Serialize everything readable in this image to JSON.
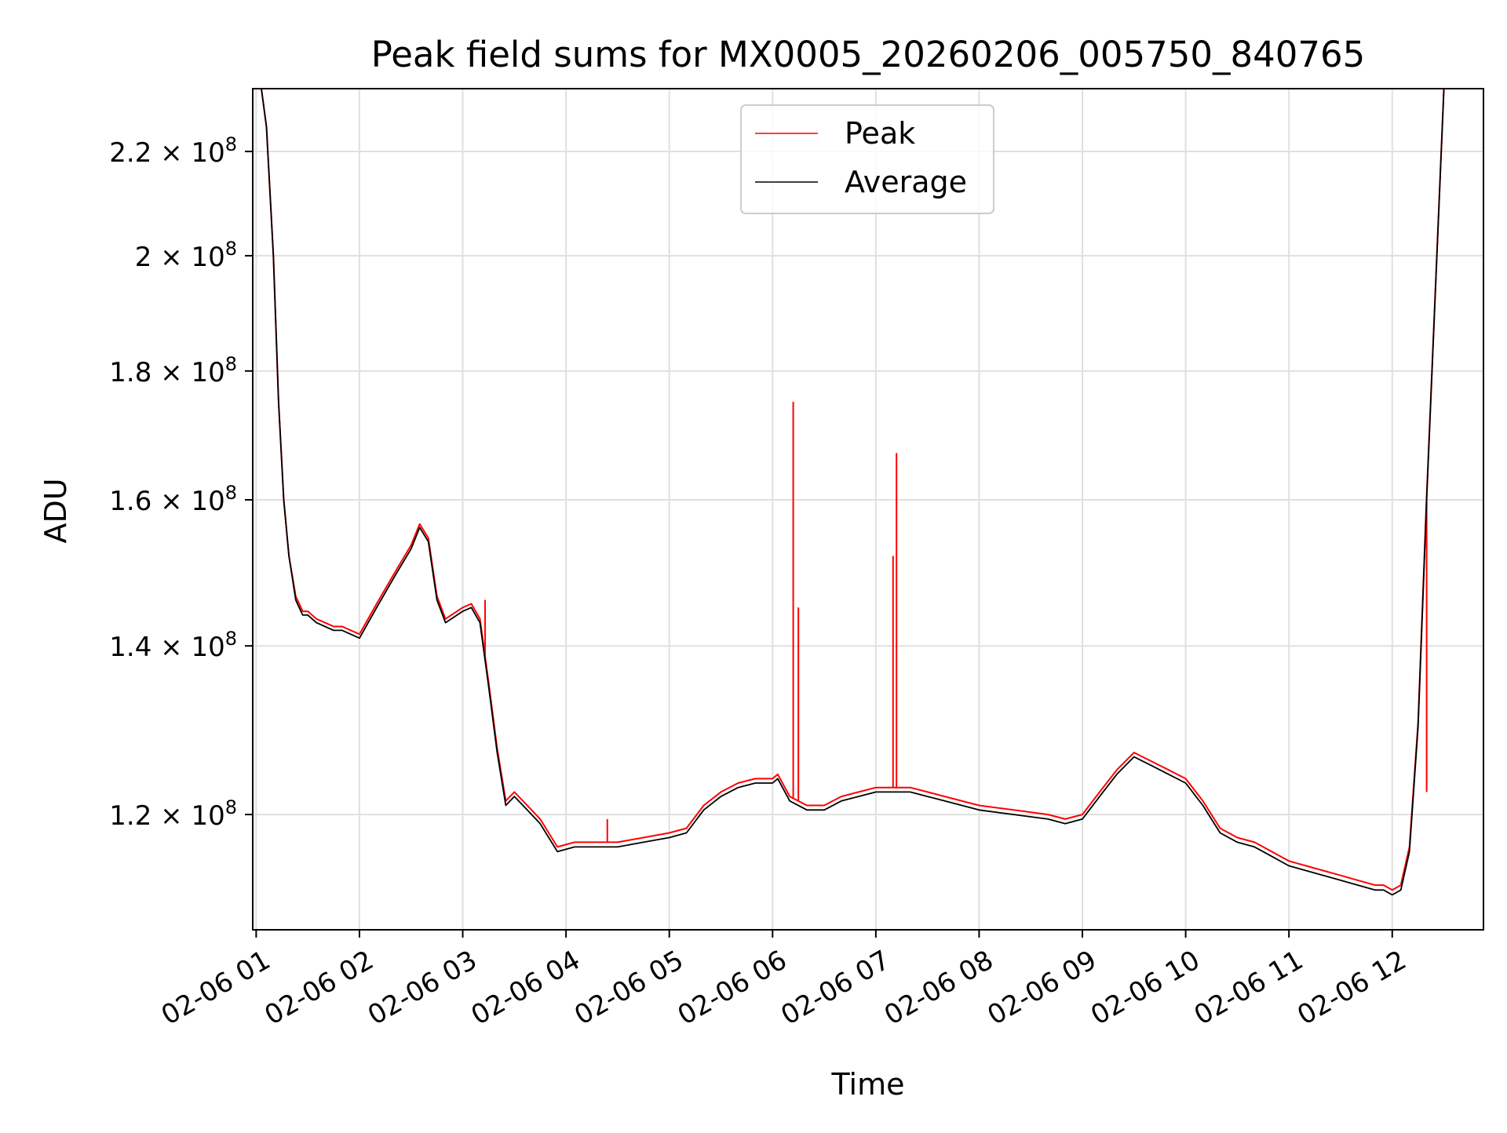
{
  "chart_data": {
    "type": "line",
    "title": "Peak field sums for MX0005_20260206_005750_840765",
    "xlabel": "Time",
    "ylabel": "ADU",
    "x_axis_type": "datetime",
    "xlim": [
      "2026-02-06 00:58",
      "2026-02-06 12:53"
    ],
    "ylim": [
      108000000,
      233000000
    ],
    "grid": true,
    "legend_position": "upper center",
    "x_ticks": [
      {
        "value": "2026-02-06 01:00",
        "label": "02-06 01"
      },
      {
        "value": "2026-02-06 02:00",
        "label": "02-06 02"
      },
      {
        "value": "2026-02-06 03:00",
        "label": "02-06 03"
      },
      {
        "value": "2026-02-06 04:00",
        "label": "02-06 04"
      },
      {
        "value": "2026-02-06 05:00",
        "label": "02-06 05"
      },
      {
        "value": "2026-02-06 06:00",
        "label": "02-06 06"
      },
      {
        "value": "2026-02-06 07:00",
        "label": "02-06 07"
      },
      {
        "value": "2026-02-06 08:00",
        "label": "02-06 08"
      },
      {
        "value": "2026-02-06 09:00",
        "label": "02-06 09"
      },
      {
        "value": "2026-02-06 10:00",
        "label": "02-06 10"
      },
      {
        "value": "2026-02-06 11:00",
        "label": "02-06 11"
      },
      {
        "value": "2026-02-06 12:00",
        "label": "02-06 12"
      }
    ],
    "y_ticks": [
      {
        "value": 120000000,
        "mantissa": "1.2",
        "base": "10",
        "exponent": "8"
      },
      {
        "value": 140000000,
        "mantissa": "1.4",
        "base": "10",
        "exponent": "8"
      },
      {
        "value": 160000000,
        "mantissa": "1.6",
        "base": "10",
        "exponent": "8"
      },
      {
        "value": 180000000,
        "mantissa": "1.8",
        "base": "10",
        "exponent": "8"
      },
      {
        "value": 200000000,
        "mantissa": "2",
        "base": "10",
        "exponent": "8"
      },
      {
        "value": 220000000,
        "mantissa": "2.2",
        "base": "10",
        "exponent": "8"
      }
    ],
    "series": [
      {
        "name": "Average",
        "color": "#000000",
        "x": [
          "2026-02-06 00:58",
          "2026-02-06 01:03",
          "2026-02-06 01:06",
          "2026-02-06 01:10",
          "2026-02-06 01:13",
          "2026-02-06 01:16",
          "2026-02-06 01:19",
          "2026-02-06 01:23",
          "2026-02-06 01:27",
          "2026-02-06 01:30",
          "2026-02-06 01:35",
          "2026-02-06 01:40",
          "2026-02-06 01:45",
          "2026-02-06 01:50",
          "2026-02-06 02:00",
          "2026-02-06 02:10",
          "2026-02-06 02:20",
          "2026-02-06 02:30",
          "2026-02-06 02:35",
          "2026-02-06 02:40",
          "2026-02-06 02:45",
          "2026-02-06 02:50",
          "2026-02-06 03:00",
          "2026-02-06 03:05",
          "2026-02-06 03:10",
          "2026-02-06 03:15",
          "2026-02-06 03:20",
          "2026-02-06 03:25",
          "2026-02-06 03:30",
          "2026-02-06 03:35",
          "2026-02-06 03:45",
          "2026-02-06 03:55",
          "2026-02-06 04:05",
          "2026-02-06 04:10",
          "2026-02-06 04:15",
          "2026-02-06 04:30",
          "2026-02-06 04:45",
          "2026-02-06 05:00",
          "2026-02-06 05:10",
          "2026-02-06 05:20",
          "2026-02-06 05:30",
          "2026-02-06 05:40",
          "2026-02-06 05:50",
          "2026-02-06 06:00",
          "2026-02-06 06:03",
          "2026-02-06 06:10",
          "2026-02-06 06:20",
          "2026-02-06 06:30",
          "2026-02-06 06:40",
          "2026-02-06 06:50",
          "2026-02-06 07:00",
          "2026-02-06 07:10",
          "2026-02-06 07:20",
          "2026-02-06 07:30",
          "2026-02-06 07:40",
          "2026-02-06 08:00",
          "2026-02-06 08:20",
          "2026-02-06 08:40",
          "2026-02-06 08:50",
          "2026-02-06 09:00",
          "2026-02-06 09:10",
          "2026-02-06 09:20",
          "2026-02-06 09:30",
          "2026-02-06 09:40",
          "2026-02-06 09:50",
          "2026-02-06 10:00",
          "2026-02-06 10:10",
          "2026-02-06 10:20",
          "2026-02-06 10:30",
          "2026-02-06 10:40",
          "2026-02-06 10:50",
          "2026-02-06 11:00",
          "2026-02-06 11:10",
          "2026-02-06 11:20",
          "2026-02-06 11:30",
          "2026-02-06 11:40",
          "2026-02-06 11:50",
          "2026-02-06 11:55",
          "2026-02-06 12:00",
          "2026-02-06 12:05",
          "2026-02-06 12:10",
          "2026-02-06 12:15",
          "2026-02-06 12:20",
          "2026-02-06 12:30",
          "2026-02-06 12:45"
        ],
        "y": [
          233000000,
          233000000,
          225000000,
          200000000,
          175000000,
          160000000,
          152000000,
          146000000,
          144000000,
          144000000,
          143000000,
          142500000,
          142000000,
          142000000,
          141000000,
          145000000,
          149000000,
          153000000,
          156000000,
          154000000,
          146000000,
          143000000,
          144500000,
          145000000,
          143000000,
          135000000,
          127000000,
          121000000,
          122000000,
          121000000,
          119000000,
          116000000,
          116500000,
          116500000,
          116500000,
          116500000,
          117000000,
          117500000,
          118000000,
          120500000,
          122000000,
          123000000,
          123500000,
          123500000,
          124000000,
          121500000,
          120500000,
          120500000,
          121500000,
          122000000,
          122500000,
          122500000,
          122500000,
          122000000,
          121500000,
          120500000,
          120000000,
          119500000,
          119000000,
          119500000,
          122000000,
          124500000,
          126500000,
          125500000,
          124500000,
          123500000,
          121000000,
          118000000,
          117000000,
          116500000,
          115500000,
          114500000,
          114000000,
          113500000,
          113000000,
          112500000,
          112000000,
          112000000,
          111500000,
          112000000,
          116000000,
          130000000,
          160000000,
          233000000,
          233000000
        ]
      },
      {
        "name": "Peak",
        "color": "#ff0000",
        "x": [
          "2026-02-06 00:58",
          "2026-02-06 01:03",
          "2026-02-06 01:06",
          "2026-02-06 01:10",
          "2026-02-06 01:13",
          "2026-02-06 01:16",
          "2026-02-06 01:19",
          "2026-02-06 01:23",
          "2026-02-06 01:27",
          "2026-02-06 01:30",
          "2026-02-06 01:35",
          "2026-02-06 01:40",
          "2026-02-06 01:45",
          "2026-02-06 01:50",
          "2026-02-06 02:00",
          "2026-02-06 02:10",
          "2026-02-06 02:20",
          "2026-02-06 02:30",
          "2026-02-06 02:35",
          "2026-02-06 02:40",
          "2026-02-06 02:45",
          "2026-02-06 02:50",
          "2026-02-06 03:00",
          "2026-02-06 03:05",
          "2026-02-06 03:10",
          "2026-02-06 03:15",
          "2026-02-06 03:20",
          "2026-02-06 03:25",
          "2026-02-06 03:30",
          "2026-02-06 03:35",
          "2026-02-06 03:45",
          "2026-02-06 03:55",
          "2026-02-06 04:05",
          "2026-02-06 04:10",
          "2026-02-06 04:15",
          "2026-02-06 04:30",
          "2026-02-06 04:45",
          "2026-02-06 05:00",
          "2026-02-06 05:10",
          "2026-02-06 05:20",
          "2026-02-06 05:30",
          "2026-02-06 05:40",
          "2026-02-06 05:50",
          "2026-02-06 06:00",
          "2026-02-06 06:03",
          "2026-02-06 06:10",
          "2026-02-06 06:20",
          "2026-02-06 06:30",
          "2026-02-06 06:40",
          "2026-02-06 06:50",
          "2026-02-06 07:00",
          "2026-02-06 07:10",
          "2026-02-06 07:20",
          "2026-02-06 07:30",
          "2026-02-06 07:40",
          "2026-02-06 08:00",
          "2026-02-06 08:20",
          "2026-02-06 08:40",
          "2026-02-06 08:50",
          "2026-02-06 09:00",
          "2026-02-06 09:10",
          "2026-02-06 09:20",
          "2026-02-06 09:30",
          "2026-02-06 09:40",
          "2026-02-06 09:50",
          "2026-02-06 10:00",
          "2026-02-06 10:10",
          "2026-02-06 10:20",
          "2026-02-06 10:30",
          "2026-02-06 10:40",
          "2026-02-06 10:50",
          "2026-02-06 11:00",
          "2026-02-06 11:10",
          "2026-02-06 11:20",
          "2026-02-06 11:30",
          "2026-02-06 11:40",
          "2026-02-06 11:50",
          "2026-02-06 11:55",
          "2026-02-06 12:00",
          "2026-02-06 12:05",
          "2026-02-06 12:10",
          "2026-02-06 12:15",
          "2026-02-06 12:20",
          "2026-02-06 12:30",
          "2026-02-06 12:45"
        ],
        "y": [
          233000000,
          233000000,
          225000000,
          200000000,
          175000000,
          160000000,
          152000000,
          146500000,
          144500000,
          144500000,
          143500000,
          143000000,
          142500000,
          142500000,
          141500000,
          145500000,
          149500000,
          153500000,
          156500000,
          154500000,
          146500000,
          143500000,
          145000000,
          145500000,
          143500000,
          135500000,
          127500000,
          121500000,
          122500000,
          121500000,
          119500000,
          116500000,
          117000000,
          117000000,
          117000000,
          117000000,
          117500000,
          118000000,
          118500000,
          121000000,
          122500000,
          123500000,
          124000000,
          124000000,
          124500000,
          122000000,
          121000000,
          121000000,
          122000000,
          122500000,
          123000000,
          123000000,
          123000000,
          122500000,
          122000000,
          121000000,
          120500000,
          120000000,
          119500000,
          120000000,
          122500000,
          125000000,
          127000000,
          126000000,
          125000000,
          124000000,
          121500000,
          118500000,
          117500000,
          117000000,
          116000000,
          115000000,
          114500000,
          114000000,
          113500000,
          113000000,
          112500000,
          112500000,
          112000000,
          112500000,
          116500000,
          130500000,
          160500000,
          233000000,
          233000000
        ]
      }
    ],
    "peak_spikes": [
      {
        "x": "2026-02-06 03:13",
        "y": 146000000
      },
      {
        "x": "2026-02-06 04:24",
        "y": 119500000
      },
      {
        "x": "2026-02-06 06:12",
        "y": 175000000
      },
      {
        "x": "2026-02-06 06:15",
        "y": 145000000
      },
      {
        "x": "2026-02-06 07:10",
        "y": 152000000
      },
      {
        "x": "2026-02-06 07:12",
        "y": 167000000
      },
      {
        "x": "2026-02-06 12:20",
        "y": 122500000
      }
    ]
  }
}
